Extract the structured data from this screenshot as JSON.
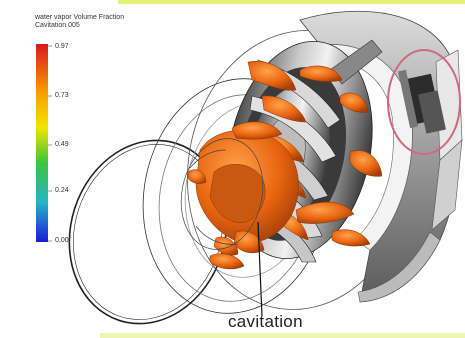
{
  "legend": {
    "title_line1": "water vapor Volume Fraction",
    "title_line2": "Cavitation 005",
    "ticks": [
      "0.97",
      "0.73",
      "0.49",
      "0.24",
      "0.00"
    ],
    "gradient_colors": [
      "#d7191c",
      "#f7a000",
      "#f2e600",
      "#3cc43c",
      "#28b4c8",
      "#1a1ad8"
    ]
  },
  "caption": "cavitation",
  "colors": {
    "cavitation": "#e86a12",
    "accent_border": "#e6f07a",
    "highlight_circle": "#d06a7c"
  }
}
